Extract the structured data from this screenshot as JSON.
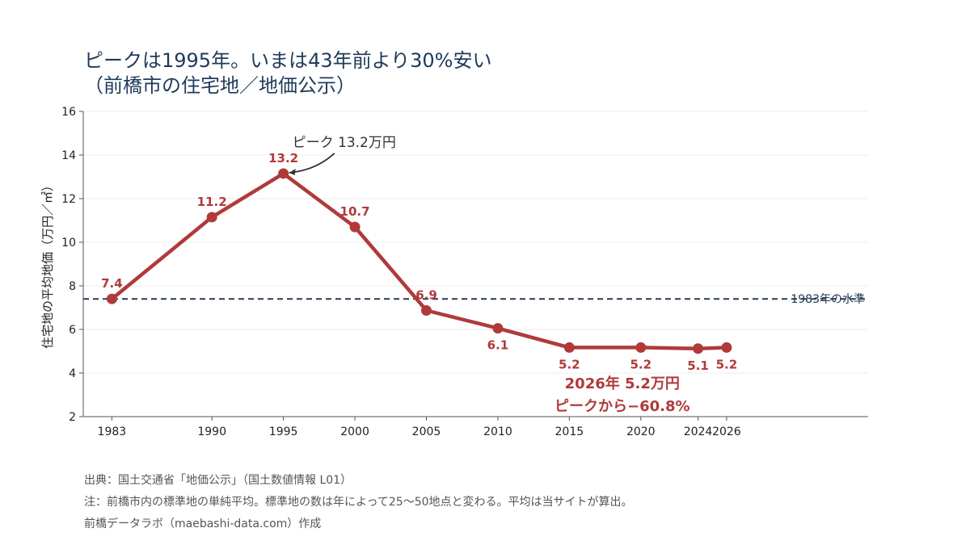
{
  "chart_data": {
    "type": "line",
    "title": "ピークは1995年。いまは43年前より30%安い",
    "subtitle": "（前橋市の住宅地／地価公示）",
    "ylabel": "住宅地の平均地価（万円／㎡）",
    "xlabel": "",
    "ylim": [
      2,
      16
    ],
    "yticks": [
      2,
      4,
      6,
      8,
      10,
      12,
      14,
      16
    ],
    "categories": [
      "1983",
      "1990",
      "1995",
      "2000",
      "2005",
      "2010",
      "2015",
      "2020",
      "2024",
      "2026"
    ],
    "x": [
      1983,
      1990,
      1995,
      2000,
      2005,
      2010,
      2015,
      2020,
      2024,
      2026
    ],
    "series": [
      {
        "values": [
          7.4,
          11.15,
          13.15,
          10.7,
          6.87,
          6.05,
          5.17,
          5.17,
          5.12,
          5.17
        ],
        "labels": [
          "7.4",
          "11.2",
          "13.2",
          "10.7",
          "6.9",
          "6.1",
          "5.2",
          "5.2",
          "5.1",
          "5.2"
        ],
        "color": "#b03a3a"
      }
    ],
    "reference_line": {
      "value": 7.4,
      "label": "1983年の水準",
      "color": "#253a55"
    },
    "annotations": {
      "peak": {
        "x": 1995,
        "y": 13.15,
        "text": "ピーク 13.2万円",
        "color": "#333333"
      },
      "latest_line1": "2026年 5.2万円",
      "latest_line2": "ピークから−60.8%"
    },
    "grid": true,
    "legend": "none"
  },
  "footer": {
    "source": "出典：国土交通省「地価公示」（国土数値情報 L01）",
    "note": "注：前橋市内の標準地の単純平均。標準地の数は年によって25〜50地点と変わる。平均は当サイトが算出。",
    "credit": "前橋データラボ（maebashi-data.com）作成"
  }
}
